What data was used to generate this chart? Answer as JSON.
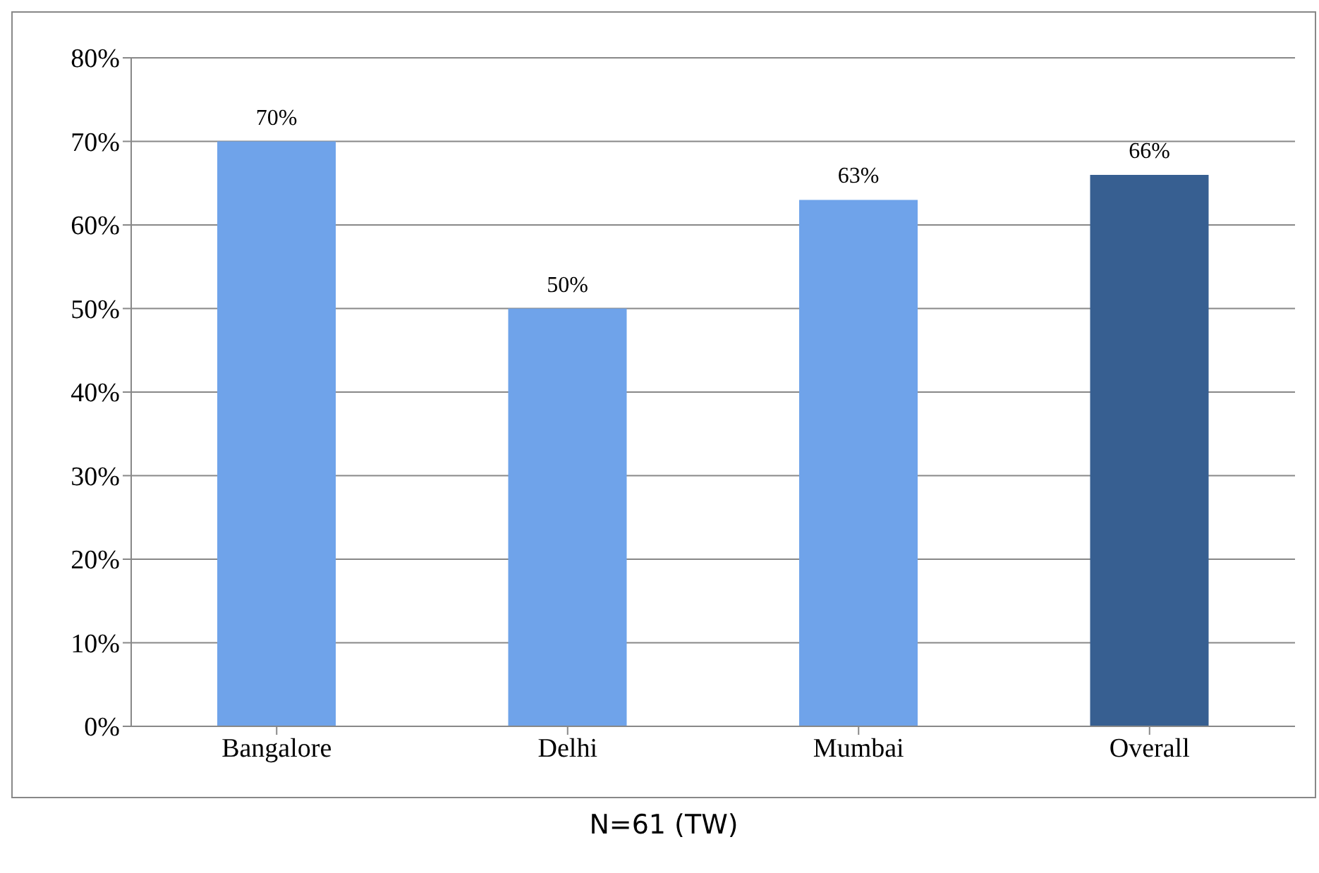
{
  "chart_data": {
    "type": "bar",
    "categories": [
      "Bangalore",
      "Delhi",
      "Mumbai",
      "Overall"
    ],
    "values": [
      70,
      50,
      63,
      66
    ],
    "colors": [
      "#6fa3ea",
      "#6fa3ea",
      "#6fa3ea",
      "#375f91"
    ],
    "value_labels": [
      "70%",
      "50%",
      "63%",
      "66%"
    ],
    "ylim": [
      0,
      80
    ],
    "yticks": [
      {
        "value": 0,
        "label": "0%"
      },
      {
        "value": 10,
        "label": "10%"
      },
      {
        "value": 20,
        "label": "20%"
      },
      {
        "value": 30,
        "label": "30%"
      },
      {
        "value": 40,
        "label": "40%"
      },
      {
        "value": 50,
        "label": "50%"
      },
      {
        "value": 60,
        "label": "60%"
      },
      {
        "value": 70,
        "label": "70%"
      },
      {
        "value": 80,
        "label": "80%"
      }
    ],
    "grid": "y",
    "annotations": [
      "N=61 (TW)"
    ]
  }
}
